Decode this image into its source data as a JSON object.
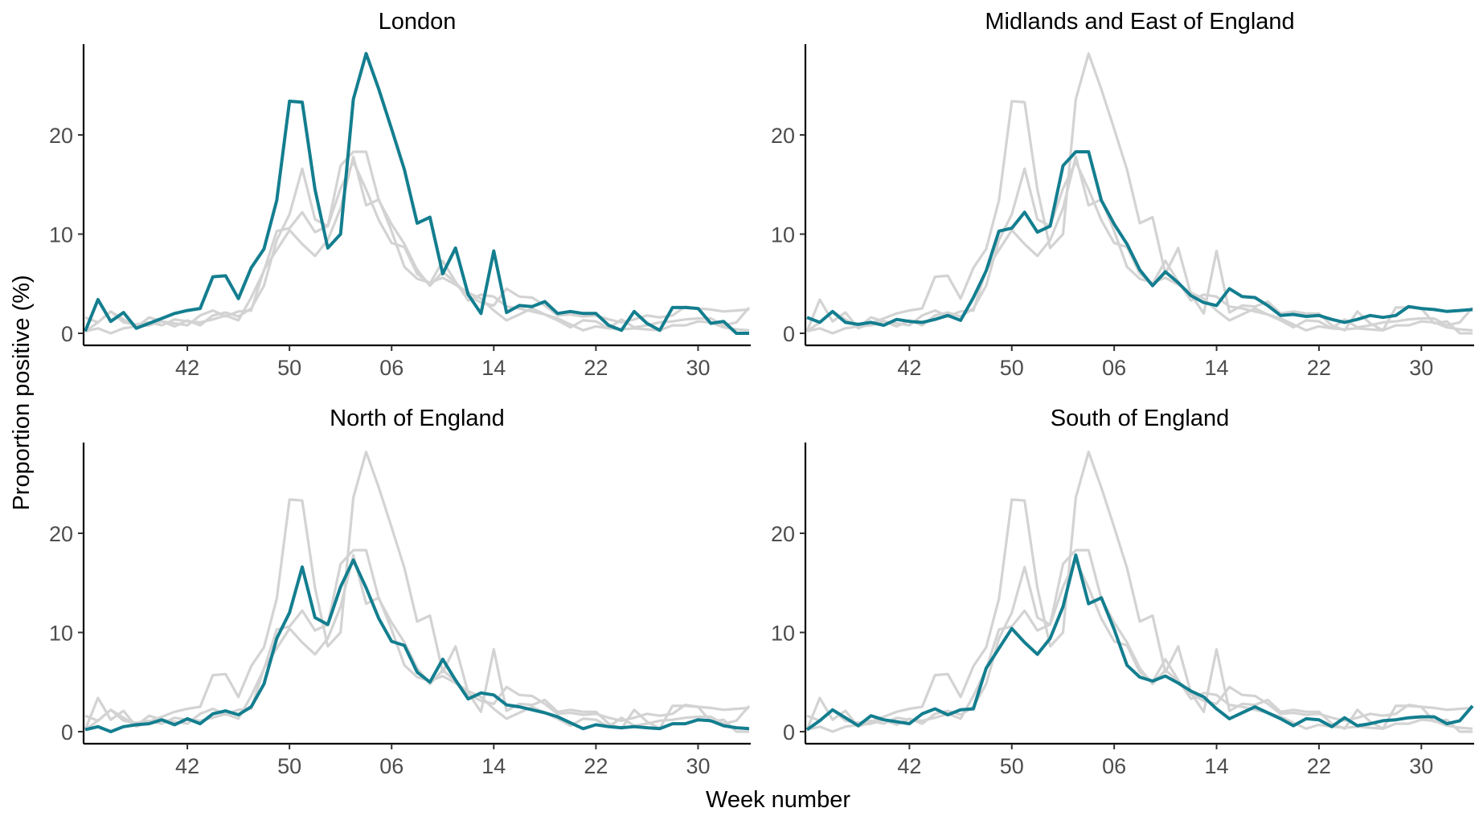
{
  "chart_data": {
    "type": "line",
    "layout": "facet-grid-2x2",
    "ylabel": "Proportion positive (%)",
    "xlabel": "Week number",
    "x_ticks": [
      "42",
      "50",
      "06",
      "14",
      "22",
      "30"
    ],
    "y_ticks": [
      "0",
      "10",
      "20"
    ],
    "ylim": [
      0,
      29
    ],
    "highlight_color": "#137e8f",
    "background_series_color": "#d3d3d3",
    "panels": [
      {
        "title": "London",
        "values": [
          0.2,
          3.4,
          1.2,
          2.1,
          0.5,
          1.0,
          1.5,
          2.0,
          2.3,
          2.5,
          5.7,
          5.8,
          3.5,
          6.6,
          8.5,
          13.4,
          23.4,
          23.3,
          14.5,
          8.6,
          10.0,
          23.6,
          28.2,
          24.6,
          20.6,
          16.5,
          11.1,
          11.7,
          6.0,
          8.6,
          3.9,
          2.0,
          8.3,
          2.1,
          2.8,
          2.7,
          3.2,
          2.0,
          2.2,
          2.0,
          2.0,
          0.8,
          0.3,
          2.2,
          1.0,
          0.3,
          2.6,
          2.6,
          2.5,
          1.0,
          1.2,
          0.0,
          0.0
        ]
      },
      {
        "title": "Midlands and East of England",
        "values": [
          1.6,
          1.1,
          2.2,
          1.1,
          0.9,
          1.1,
          0.8,
          1.4,
          1.2,
          1.1,
          1.4,
          1.8,
          1.3,
          3.6,
          6.3,
          10.3,
          10.6,
          12.2,
          10.2,
          10.8,
          16.9,
          18.3,
          18.3,
          13.4,
          11.0,
          9.0,
          6.4,
          4.8,
          6.2,
          5.1,
          3.8,
          3.1,
          2.8,
          4.5,
          3.7,
          3.6,
          2.8,
          1.8,
          1.9,
          1.7,
          1.8,
          1.4,
          1.1,
          1.4,
          1.8,
          1.6,
          1.8,
          2.7,
          2.5,
          2.4,
          2.2,
          2.3,
          2.4
        ]
      },
      {
        "title": "North of England",
        "values": [
          0.2,
          0.5,
          0.0,
          0.5,
          0.7,
          0.8,
          1.2,
          0.7,
          1.3,
          0.8,
          1.8,
          2.1,
          1.7,
          2.5,
          4.8,
          9.4,
          12.0,
          16.6,
          11.5,
          10.8,
          14.6,
          17.3,
          14.5,
          11.4,
          9.1,
          8.7,
          6.0,
          5.0,
          7.3,
          5.2,
          3.3,
          3.9,
          3.7,
          2.7,
          2.5,
          2.2,
          1.9,
          1.5,
          0.9,
          0.3,
          0.7,
          0.5,
          0.4,
          0.5,
          0.4,
          0.3,
          0.8,
          0.8,
          1.2,
          1.1,
          0.6,
          0.4,
          0.3
        ]
      },
      {
        "title": "South of England",
        "values": [
          0.2,
          1.1,
          2.2,
          1.4,
          0.6,
          1.6,
          1.2,
          1.0,
          0.8,
          1.8,
          2.3,
          1.7,
          2.2,
          2.3,
          6.4,
          8.4,
          10.4,
          9.0,
          7.8,
          9.4,
          12.6,
          17.8,
          12.9,
          13.5,
          10.3,
          6.7,
          5.5,
          5.1,
          5.6,
          4.9,
          4.1,
          3.5,
          2.3,
          1.3,
          1.9,
          2.5,
          1.9,
          1.3,
          0.6,
          1.3,
          1.2,
          0.5,
          1.4,
          0.6,
          0.8,
          1.1,
          1.2,
          1.4,
          1.5,
          1.5,
          0.8,
          1.1,
          2.6
        ]
      }
    ]
  }
}
